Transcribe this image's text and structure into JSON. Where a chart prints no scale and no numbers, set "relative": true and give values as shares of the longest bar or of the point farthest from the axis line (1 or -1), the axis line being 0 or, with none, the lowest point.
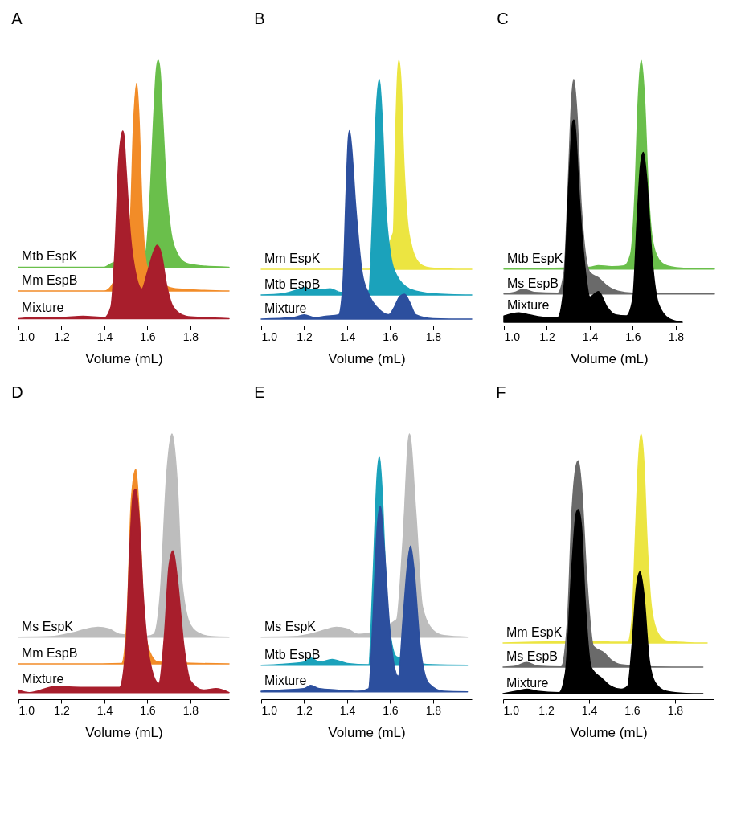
{
  "chart_data": [
    {
      "type": "area",
      "title": "A",
      "xlabel": "Volume (mL)",
      "relative": true,
      "xlim": [
        1.0,
        1.98
      ],
      "xticks": [
        {
          "value": 1.0,
          "label": "1.0"
        },
        {
          "value": 1.2,
          "label": "1.2"
        },
        {
          "value": 1.4,
          "label": "1.4"
        },
        {
          "value": 1.6,
          "label": "1.6"
        },
        {
          "value": 1.8,
          "label": "1.8"
        }
      ],
      "series": [
        {
          "name": "Mtb EspK",
          "color": "#6abf4b",
          "x": [
            1.0,
            1.2,
            1.4,
            1.43,
            1.59,
            1.61,
            1.63,
            1.64,
            1.65,
            1.66,
            1.67,
            1.69,
            1.71,
            1.74,
            1.78,
            1.85,
            1.98
          ],
          "values": [
            0.22,
            0.22,
            0.22,
            0.233,
            0.27,
            0.45,
            0.8,
            0.95,
            1.0,
            0.95,
            0.8,
            0.5,
            0.35,
            0.27,
            0.235,
            0.225,
            0.22
          ]
        },
        {
          "name": "Mm EspB",
          "color": "#f28c28",
          "x": [
            1.0,
            1.2,
            1.4,
            1.52,
            1.535,
            1.55,
            1.56,
            1.575,
            1.6,
            1.72,
            1.8,
            1.98
          ],
          "values": [
            0.13,
            0.13,
            0.13,
            0.4,
            0.75,
            0.914,
            0.8,
            0.45,
            0.22,
            0.14,
            0.135,
            0.13
          ]
        },
        {
          "name": "Mixture",
          "color": "#a81e2c",
          "x": [
            1.0,
            1.1,
            1.2,
            1.3,
            1.4,
            1.43,
            1.45,
            1.465,
            1.48,
            1.485,
            1.49,
            1.5,
            1.52,
            1.55,
            1.574,
            1.6,
            1.625,
            1.645,
            1.665,
            1.69,
            1.72,
            1.78,
            1.85,
            1.98
          ],
          "values": [
            0.026,
            0.03,
            0.03,
            0.035,
            0.03,
            0.07,
            0.3,
            0.6,
            0.72,
            0.733,
            0.72,
            0.6,
            0.35,
            0.18,
            0.138,
            0.2,
            0.27,
            0.303,
            0.27,
            0.15,
            0.07,
            0.035,
            0.03,
            0.026
          ]
        }
      ]
    },
    {
      "type": "area",
      "title": "B",
      "xlabel": "Volume (mL)",
      "relative": true,
      "xlim": [
        1.0,
        1.98
      ],
      "xticks": [
        {
          "value": 1.0,
          "label": "1.0"
        },
        {
          "value": 1.2,
          "label": "1.2"
        },
        {
          "value": 1.4,
          "label": "1.4"
        },
        {
          "value": 1.6,
          "label": "1.6"
        },
        {
          "value": 1.8,
          "label": "1.8"
        }
      ],
      "series": [
        {
          "name": "Mm EspK",
          "color": "#ece541",
          "x": [
            1.0,
            1.3,
            1.5,
            1.615,
            1.625,
            1.635,
            1.641,
            1.65,
            1.665,
            1.68,
            1.7,
            1.73,
            1.77,
            1.85,
            1.98
          ],
          "values": [
            0.212,
            0.212,
            0.212,
            0.35,
            0.7,
            0.95,
            1.0,
            0.93,
            0.6,
            0.4,
            0.3,
            0.24,
            0.22,
            0.214,
            0.212
          ]
        },
        {
          "name": "Mtb EspB",
          "color": "#1ba2bb",
          "x": [
            1.0,
            1.1,
            1.17,
            1.2,
            1.23,
            1.28,
            1.32,
            1.37,
            1.5,
            1.52,
            1.535,
            1.55,
            1.565,
            1.58,
            1.6,
            1.63,
            1.7,
            1.8,
            1.98
          ],
          "values": [
            0.115,
            0.12,
            0.135,
            0.144,
            0.135,
            0.135,
            0.139,
            0.125,
            0.13,
            0.45,
            0.8,
            0.928,
            0.75,
            0.45,
            0.28,
            0.19,
            0.135,
            0.12,
            0.115
          ]
        },
        {
          "name": "Mixture",
          "color": "#2c4f9e",
          "x": [
            1.0,
            1.15,
            1.2,
            1.25,
            1.3,
            1.36,
            1.38,
            1.395,
            1.405,
            1.411,
            1.42,
            1.44,
            1.47,
            1.5,
            1.55,
            1.594,
            1.62,
            1.645,
            1.667,
            1.69,
            1.72,
            1.8,
            1.98
          ],
          "values": [
            0.024,
            0.03,
            0.04,
            0.03,
            0.035,
            0.04,
            0.15,
            0.5,
            0.7,
            0.735,
            0.68,
            0.45,
            0.2,
            0.12,
            0.06,
            0.041,
            0.07,
            0.11,
            0.118,
            0.09,
            0.04,
            0.026,
            0.024
          ]
        }
      ]
    },
    {
      "type": "area",
      "title": "C",
      "xlabel": "Volume (mL)",
      "relative": true,
      "xlim": [
        1.0,
        1.98
      ],
      "xticks": [
        {
          "value": 1.0,
          "label": "1.0"
        },
        {
          "value": 1.2,
          "label": "1.2"
        },
        {
          "value": 1.4,
          "label": "1.4"
        },
        {
          "value": 1.6,
          "label": "1.6"
        },
        {
          "value": 1.8,
          "label": "1.8"
        }
      ],
      "series": [
        {
          "name": "Mtb EspK",
          "color": "#6abf4b",
          "x": [
            1.0,
            1.4,
            1.44,
            1.5,
            1.56,
            1.59,
            1.61,
            1.625,
            1.639,
            1.655,
            1.67,
            1.69,
            1.72,
            1.76,
            1.85,
            1.98
          ],
          "values": [
            0.213,
            0.22,
            0.226,
            0.222,
            0.225,
            0.27,
            0.5,
            0.85,
            1.0,
            0.85,
            0.55,
            0.33,
            0.25,
            0.225,
            0.215,
            0.213
          ]
        },
        {
          "name": "Ms EspB",
          "color": "#6a6a6a",
          "x": [
            1.0,
            1.05,
            1.09,
            1.14,
            1.25,
            1.28,
            1.3,
            1.315,
            1.325,
            1.34,
            1.36,
            1.4,
            1.44,
            1.48,
            1.53,
            1.6,
            1.8,
            1.98
          ],
          "values": [
            0.119,
            0.125,
            0.137,
            0.125,
            0.122,
            0.2,
            0.55,
            0.85,
            0.928,
            0.8,
            0.45,
            0.2,
            0.18,
            0.15,
            0.13,
            0.122,
            0.12,
            0.119
          ]
        },
        {
          "name": "Mixture",
          "color": "#000000",
          "x": [
            1.0,
            1.07,
            1.12,
            1.2,
            1.25,
            1.28,
            1.3,
            1.315,
            1.32,
            1.325,
            1.33,
            1.335,
            1.35,
            1.38,
            1.4,
            1.44,
            1.48,
            1.52,
            1.57,
            1.6,
            1.62,
            1.635,
            1.649,
            1.665,
            1.69,
            1.72,
            1.77,
            1.83
          ],
          "values": [
            0.036,
            0.048,
            0.04,
            0.03,
            0.03,
            0.15,
            0.5,
            0.72,
            0.765,
            0.775,
            0.765,
            0.72,
            0.5,
            0.2,
            0.108,
            0.128,
            0.07,
            0.04,
            0.036,
            0.1,
            0.4,
            0.6,
            0.653,
            0.55,
            0.25,
            0.08,
            0.025,
            0.012
          ]
        }
      ]
    },
    {
      "type": "area",
      "title": "D",
      "xlabel": "Volume (mL)",
      "relative": true,
      "xlim": [
        1.0,
        1.98
      ],
      "xticks": [
        {
          "value": 1.0,
          "label": "1.0"
        },
        {
          "value": 1.2,
          "label": "1.2"
        },
        {
          "value": 1.4,
          "label": "1.4"
        },
        {
          "value": 1.6,
          "label": "1.6"
        },
        {
          "value": 1.8,
          "label": "1.8"
        }
      ],
      "series": [
        {
          "name": "Ms EspK",
          "color": "#bdbdbd",
          "x": [
            1.0,
            1.15,
            1.25,
            1.32,
            1.37,
            1.42,
            1.47,
            1.6,
            1.63,
            1.66,
            1.69,
            1.714,
            1.74,
            1.76,
            1.8,
            1.85,
            1.9,
            1.98
          ],
          "values": [
            0.234,
            0.236,
            0.25,
            0.265,
            0.271,
            0.265,
            0.245,
            0.238,
            0.245,
            0.4,
            0.85,
            1.0,
            0.8,
            0.45,
            0.28,
            0.245,
            0.236,
            0.234
          ]
        },
        {
          "name": "Mm EspB",
          "color": "#f28c28",
          "x": [
            1.0,
            1.3,
            1.48,
            1.505,
            1.525,
            1.546,
            1.565,
            1.585,
            1.61,
            1.65,
            1.98
          ],
          "values": [
            0.133,
            0.133,
            0.135,
            0.3,
            0.75,
            0.867,
            0.65,
            0.3,
            0.18,
            0.14,
            0.133
          ]
        },
        {
          "name": "Mixture",
          "color": "#a81e2c",
          "x": [
            1.0,
            1.05,
            1.17,
            1.3,
            1.47,
            1.5,
            1.52,
            1.535,
            1.546,
            1.56,
            1.58,
            1.61,
            1.653,
            1.68,
            1.7,
            1.719,
            1.74,
            1.77,
            1.8,
            1.86,
            1.92,
            1.98
          ],
          "values": [
            0.035,
            0.025,
            0.048,
            0.045,
            0.045,
            0.2,
            0.6,
            0.78,
            0.792,
            0.7,
            0.4,
            0.15,
            0.06,
            0.25,
            0.5,
            0.56,
            0.45,
            0.2,
            0.07,
            0.035,
            0.04,
            0.025
          ]
        }
      ]
    },
    {
      "type": "area",
      "title": "E",
      "xlabel": "Volume (mL)",
      "relative": true,
      "xlim": [
        1.0,
        1.98
      ],
      "xticks": [
        {
          "value": 1.0,
          "label": "1.0"
        },
        {
          "value": 1.2,
          "label": "1.2"
        },
        {
          "value": 1.4,
          "label": "1.4"
        },
        {
          "value": 1.6,
          "label": "1.6"
        },
        {
          "value": 1.8,
          "label": "1.8"
        }
      ],
      "series": [
        {
          "name": "Ms EspK",
          "color": "#bdbdbd",
          "x": [
            1.0,
            1.15,
            1.25,
            1.3,
            1.35,
            1.4,
            1.45,
            1.63,
            1.66,
            1.69,
            1.72,
            1.75,
            1.8,
            1.85,
            1.96
          ],
          "values": [
            0.234,
            0.236,
            0.25,
            0.262,
            0.271,
            0.265,
            0.245,
            0.3,
            0.6,
            1.0,
            0.7,
            0.35,
            0.26,
            0.24,
            0.234
          ]
        },
        {
          "name": "Mtb EspB",
          "color": "#1ba2bb",
          "x": [
            1.0,
            1.1,
            1.2,
            1.23,
            1.27,
            1.33,
            1.4,
            1.5,
            1.52,
            1.54,
            1.55,
            1.565,
            1.58,
            1.6,
            1.63,
            1.8,
            1.96
          ],
          "values": [
            0.128,
            0.132,
            0.14,
            0.156,
            0.14,
            0.15,
            0.135,
            0.13,
            0.45,
            0.85,
            0.915,
            0.75,
            0.45,
            0.25,
            0.16,
            0.13,
            0.128
          ]
        },
        {
          "name": "Mixture",
          "color": "#2c4f9e",
          "x": [
            1.0,
            1.1,
            1.2,
            1.23,
            1.27,
            1.35,
            1.45,
            1.5,
            1.52,
            1.54,
            1.555,
            1.57,
            1.6,
            1.638,
            1.66,
            1.68,
            1.695,
            1.71,
            1.74,
            1.78,
            1.85,
            1.96
          ],
          "values": [
            0.03,
            0.035,
            0.04,
            0.052,
            0.04,
            0.035,
            0.03,
            0.04,
            0.3,
            0.65,
            0.728,
            0.6,
            0.25,
            0.087,
            0.3,
            0.5,
            0.578,
            0.5,
            0.2,
            0.06,
            0.03,
            0.028
          ]
        }
      ]
    },
    {
      "type": "area",
      "title": "F",
      "xlabel": "Volume (mL)",
      "relative": true,
      "xlim": [
        1.0,
        1.98
      ],
      "xticks": [
        {
          "value": 1.0,
          "label": "1.0"
        },
        {
          "value": 1.2,
          "label": "1.2"
        },
        {
          "value": 1.4,
          "label": "1.4"
        },
        {
          "value": 1.6,
          "label": "1.6"
        },
        {
          "value": 1.8,
          "label": "1.8"
        }
      ],
      "series": [
        {
          "name": "Mm EspK",
          "color": "#ece541",
          "x": [
            1.0,
            1.45,
            1.5,
            1.58,
            1.6,
            1.615,
            1.63,
            1.642,
            1.655,
            1.67,
            1.69,
            1.72,
            1.76,
            1.85,
            1.95
          ],
          "values": [
            0.212,
            0.218,
            0.215,
            0.215,
            0.3,
            0.6,
            0.9,
            1.0,
            0.9,
            0.6,
            0.35,
            0.25,
            0.22,
            0.214,
            0.212
          ]
        },
        {
          "name": "Ms EspB",
          "color": "#6a6a6a",
          "x": [
            1.0,
            1.06,
            1.11,
            1.16,
            1.27,
            1.3,
            1.32,
            1.34,
            1.35,
            1.365,
            1.39,
            1.42,
            1.47,
            1.5,
            1.55,
            1.7,
            1.93
          ],
          "values": [
            0.121,
            0.125,
            0.139,
            0.125,
            0.122,
            0.3,
            0.7,
            0.88,
            0.899,
            0.8,
            0.45,
            0.2,
            0.175,
            0.15,
            0.13,
            0.122,
            0.121
          ]
        },
        {
          "name": "Mixture",
          "color": "#000000",
          "x": [
            1.0,
            1.06,
            1.11,
            1.16,
            1.26,
            1.29,
            1.32,
            1.34,
            1.35,
            1.365,
            1.38,
            1.41,
            1.46,
            1.5,
            1.55,
            1.58,
            1.6,
            1.62,
            1.637,
            1.655,
            1.68,
            1.71,
            1.76,
            1.85,
            1.93
          ],
          "values": [
            0.021,
            0.03,
            0.038,
            0.03,
            0.025,
            0.1,
            0.5,
            0.7,
            0.715,
            0.65,
            0.4,
            0.12,
            0.079,
            0.05,
            0.038,
            0.05,
            0.2,
            0.42,
            0.48,
            0.4,
            0.15,
            0.06,
            0.03,
            0.022,
            0.021
          ]
        }
      ]
    }
  ]
}
